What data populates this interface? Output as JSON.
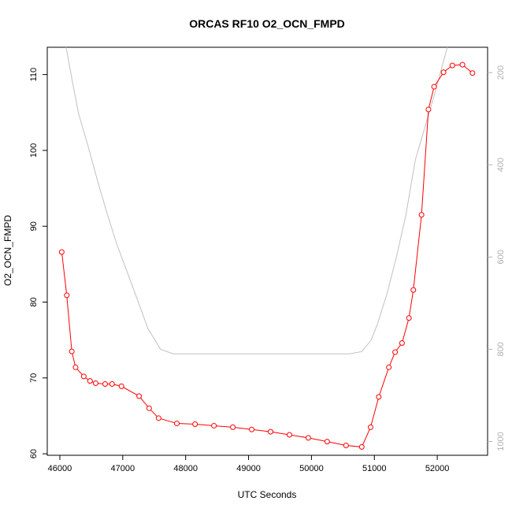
{
  "chart_data": {
    "type": "line",
    "title": "ORCAS RF10 O2_OCN_FMPD",
    "xlabel": "UTC Seconds",
    "ylabel": "O2_OCN_FMPD",
    "xlim": [
      45800,
      52800
    ],
    "ylim": [
      59.8,
      113.6
    ],
    "y2lim": [
      1030,
      145
    ],
    "x_ticks": [
      46000,
      47000,
      48000,
      49000,
      50000,
      51000,
      52000
    ],
    "y_ticks": [
      60,
      70,
      80,
      90,
      100,
      110
    ],
    "y2_ticks": [
      200,
      400,
      600,
      800,
      1000
    ],
    "grid": false,
    "series": [
      {
        "color": "#ff0000",
        "marker": "open-circle",
        "x": [
          46030,
          46110,
          46190,
          46250,
          46380,
          46480,
          46570,
          46720,
          46830,
          46980,
          47260,
          47420,
          47570,
          47860,
          48150,
          48450,
          48750,
          49050,
          49350,
          49650,
          49950,
          50250,
          50550,
          50800,
          50940,
          51070,
          51230,
          51330,
          51440,
          51550,
          51620,
          51750,
          51860,
          51950,
          52100,
          52240,
          52400,
          52560
        ],
        "y": [
          86.6,
          80.9,
          73.5,
          71.4,
          70.2,
          69.6,
          69.3,
          69.2,
          69.2,
          68.9,
          67.6,
          66.0,
          64.7,
          64.0,
          63.9,
          63.7,
          63.5,
          63.2,
          62.9,
          62.5,
          62.1,
          61.6,
          61.1,
          60.9,
          63.5,
          67.5,
          71.4,
          73.4,
          74.6,
          77.9,
          81.6,
          91.5,
          105.4,
          108.4,
          110.3,
          111.2,
          111.3,
          110.2
        ]
      },
      {
        "color": "#c0c0c0",
        "axis": "right",
        "x": [
          46100,
          46200,
          46300,
          46450,
          46600,
          46750,
          46900,
          47050,
          47200,
          47400,
          47600,
          47800,
          48000,
          49000,
          50000,
          50600,
          50800,
          50950,
          51050,
          51200,
          51350,
          51500,
          51650,
          51800,
          51950,
          52080,
          52160,
          52200
        ],
        "y": [
          145,
          220,
          290,
          360,
          435,
          505,
          570,
          625,
          680,
          755,
          800,
          810,
          810,
          810,
          810,
          810,
          805,
          780,
          745,
          680,
          600,
          510,
          390,
          320,
          250,
          185,
          145,
          130
        ]
      }
    ]
  }
}
